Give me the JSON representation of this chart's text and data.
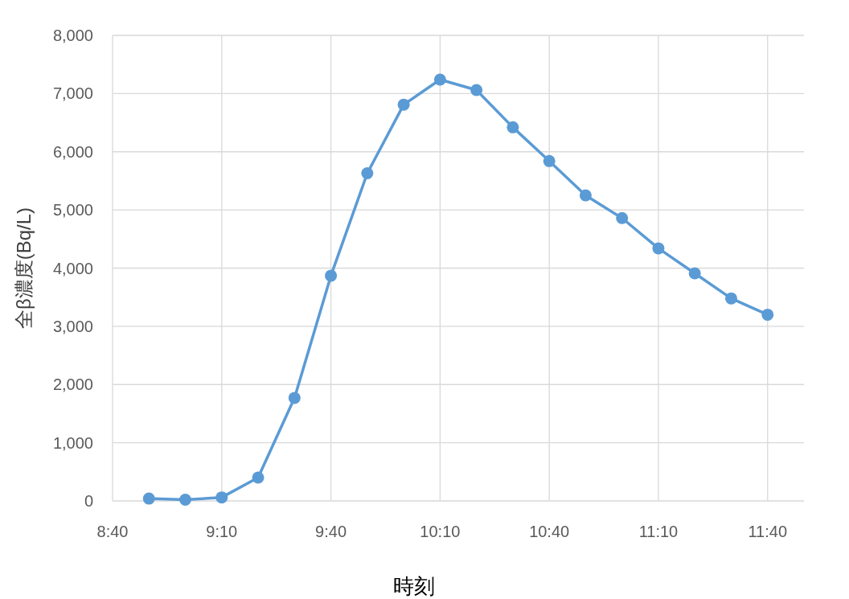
{
  "chart_data": {
    "type": "line",
    "xlabel": "時刻",
    "ylabel": "全β濃度(Bq/L)",
    "x": [
      8.8333,
      9.0,
      9.1667,
      9.3333,
      9.5,
      9.6667,
      9.8333,
      10.0,
      10.1667,
      10.3333,
      10.5,
      10.6667,
      10.8333,
      11.0,
      11.1667,
      11.3333,
      11.5,
      11.6667
    ],
    "series": [
      {
        "color": "#5b9bd5",
        "values": [
          40,
          20,
          60,
          400,
          1770,
          3870,
          5630,
          6810,
          7240,
          7060,
          6420,
          5840,
          5250,
          4860,
          4340,
          3910,
          3480,
          3200
        ]
      }
    ],
    "xlim": [
      8.6667,
      11.8333
    ],
    "xticks": [
      {
        "value": 8.6667,
        "label": "8:40"
      },
      {
        "value": 9.1667,
        "label": "9:10"
      },
      {
        "value": 9.6667,
        "label": "9:40"
      },
      {
        "value": 10.1667,
        "label": "10:10"
      },
      {
        "value": 10.6667,
        "label": "10:40"
      },
      {
        "value": 11.1667,
        "label": "11:10"
      },
      {
        "value": 11.6667,
        "label": "11:40"
      }
    ],
    "ylim": [
      0,
      8000
    ],
    "yticks": [
      0,
      {
        "value": 1000,
        "label": "1,000"
      },
      {
        "value": 2000,
        "label": "2,000"
      },
      {
        "value": 3000,
        "label": "3,000"
      },
      {
        "value": 4000,
        "label": "4,000"
      },
      {
        "value": 5000,
        "label": "5,000"
      },
      {
        "value": 6000,
        "label": "6,000"
      },
      {
        "value": 7000,
        "label": "7,000"
      },
      {
        "value": 8000,
        "label": "8,000"
      }
    ],
    "grid": true,
    "marker": "circle",
    "line_style": "solid"
  }
}
